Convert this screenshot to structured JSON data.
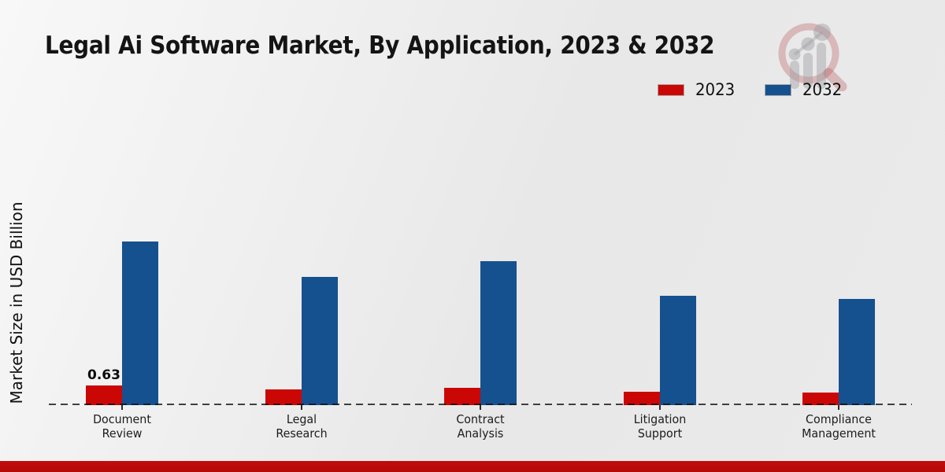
{
  "title": "Legal Ai Software Market, By Application, 2023 & 2032",
  "y_axis_label": "Market Size in USD Billion",
  "legend": {
    "items": [
      {
        "label": "2023",
        "color": "#cb0706"
      },
      {
        "label": "2032",
        "color": "#15518f"
      }
    ]
  },
  "logo": {
    "name": "market-research-future-watermark"
  },
  "footer": {
    "bar_color": "#b30909"
  },
  "chart_data": {
    "type": "bar",
    "title": "Legal Ai Software Market, By Application, 2023 & 2032",
    "xlabel": "",
    "ylabel": "Market Size in USD Billion",
    "categories": [
      "Document Review",
      "Legal Research",
      "Contract Analysis",
      "Litigation Support",
      "Compliance Management"
    ],
    "series": [
      {
        "name": "2023",
        "color": "#cb0706",
        "values": [
          0.63,
          0.5,
          0.55,
          0.43,
          0.4
        ]
      },
      {
        "name": "2032",
        "color": "#15518f",
        "values": [
          5.25,
          4.1,
          4.6,
          3.5,
          3.4
        ]
      }
    ],
    "data_labels": [
      {
        "series": "2023",
        "category_index": 0,
        "text": "0.63"
      }
    ],
    "ylim": [
      0,
      6
    ],
    "grid": false,
    "legend_position": "top-right",
    "baseline_style": "dashed"
  }
}
